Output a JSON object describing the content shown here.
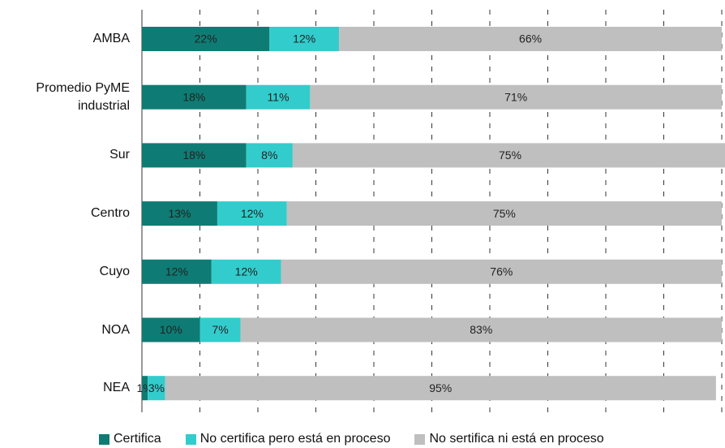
{
  "chart_data": {
    "type": "bar",
    "orientation": "horizontal",
    "stacked": true,
    "categories": [
      "AMBA",
      "Promedio PyME industrial",
      "Sur",
      "Centro",
      "Cuyo",
      "NOA",
      "NEA"
    ],
    "series": [
      {
        "name": "Certifica",
        "color": "#0e7c74",
        "values": [
          22,
          18,
          18,
          13,
          12,
          10,
          1
        ],
        "value_labels": [
          "22%",
          "18%",
          "18%",
          "13%",
          "12%",
          "10%",
          "1%"
        ]
      },
      {
        "name": "No certifica pero está en proceso",
        "color": "#33cccc",
        "values": [
          12,
          11,
          8,
          12,
          12,
          7,
          3
        ],
        "value_labels": [
          "12%",
          "11%",
          "8%",
          "12%",
          "12%",
          "7%",
          "3%"
        ]
      },
      {
        "name": "No sertifica ni está en proceso",
        "color": "#bfbfbf",
        "values": [
          66,
          71,
          75,
          75,
          76,
          83,
          95
        ],
        "value_labels": [
          "66%",
          "71%",
          "75%",
          "75%",
          "76%",
          "83%",
          "95%"
        ]
      }
    ],
    "xlim": [
      0,
      100
    ],
    "xticks": [
      0,
      10,
      20,
      30,
      40,
      50,
      60,
      70,
      80,
      90,
      100
    ],
    "grid": true,
    "legend": "bottom"
  }
}
